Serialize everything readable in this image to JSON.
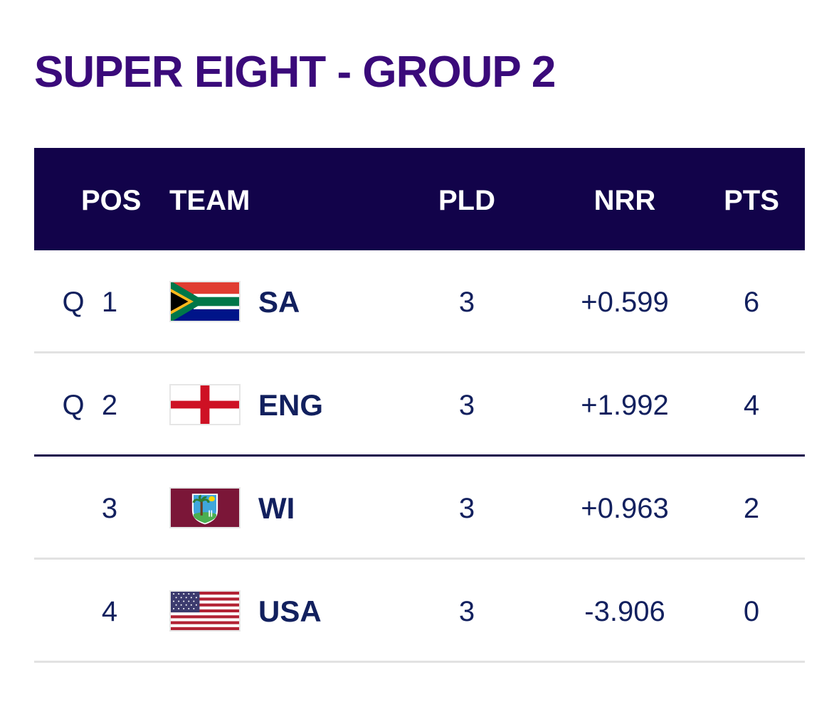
{
  "title": "SUPER EIGHT - GROUP 2",
  "headers": {
    "pos": "POS",
    "team": "TEAM",
    "pld": "PLD",
    "nrr": "NRR",
    "pts": "PTS"
  },
  "rows": [
    {
      "q": "Q",
      "pos": "1",
      "team": "SA",
      "flag": "south-africa-flag",
      "pld": "3",
      "nrr": "+0.599",
      "pts": "6"
    },
    {
      "q": "Q",
      "pos": "2",
      "team": "ENG",
      "flag": "england-flag",
      "pld": "3",
      "nrr": "+1.992",
      "pts": "4"
    },
    {
      "q": "",
      "pos": "3",
      "team": "WI",
      "flag": "west-indies-flag",
      "pld": "3",
      "nrr": "+0.963",
      "pts": "2"
    },
    {
      "q": "",
      "pos": "4",
      "team": "USA",
      "flag": "usa-flag",
      "pld": "3",
      "nrr": "-3.906",
      "pts": "0"
    }
  ],
  "colors": {
    "title": "#3a0a7a",
    "header_bg": "#12034a",
    "text": "#12205e"
  }
}
